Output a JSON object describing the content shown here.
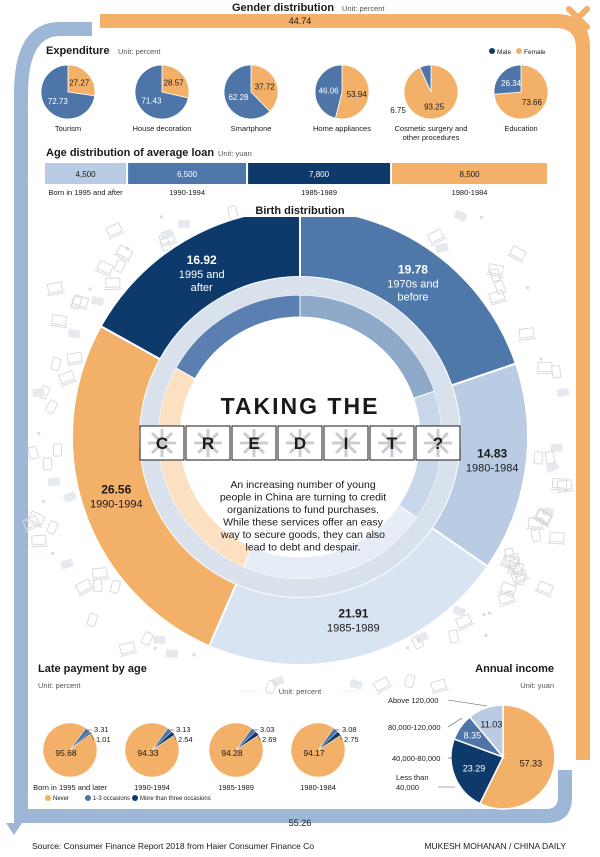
{
  "colors": {
    "male": "#4d75a8",
    "female": "#f2b069",
    "navy": "#0e3a6b",
    "mid": "#4f78aa",
    "light": "#b9cce3",
    "pale": "#d8e4f1",
    "peach": "#f7cd9f",
    "track": "#b9c9df",
    "never": "#f2b069",
    "occ13": "#4d75a8",
    "occ3p": "#0e3a6b"
  },
  "gender": {
    "title": "Gender distribution",
    "unit": "Unit: percent",
    "male_value": "55.26",
    "female_value": "44.74"
  },
  "expenditure": {
    "title": "Expenditure",
    "unit": "Unit: percent",
    "legend_male": "Male",
    "legend_female": "Female"
  },
  "loan": {
    "title": "Age distribution of average loan",
    "unit": "Unit: yuan"
  },
  "birth": {
    "title": "Birth distribution",
    "unit": "Unit: percent"
  },
  "headline": {
    "line1": "TAKING THE",
    "letters": [
      "C",
      "R",
      "E",
      "D",
      "I",
      "T",
      "?"
    ],
    "blurb": [
      "An increasing number of young",
      "people in China are turning to credit",
      "organizations to fund purchases.",
      "While these services offer an easy",
      "way to secure goods, they can also",
      "lead to debt and despair."
    ]
  },
  "late": {
    "title": "Late payment by age",
    "unit": "Unit: percent",
    "legend": [
      "Never",
      "1-3 occasions",
      "More than three occasions"
    ]
  },
  "income": {
    "title": "Annual income",
    "unit": "Unit: yuan"
  },
  "footer": {
    "source": "Source: Consumer Finance Report 2018 from Haier Consumer Finance Co",
    "credit": "MUKESH MOHANAN / CHINA DAILY"
  },
  "chart_data": [
    {
      "id": "gender",
      "type": "bar",
      "title": "Gender distribution",
      "unit": "percent",
      "categories": [
        "Male",
        "Female"
      ],
      "values": [
        55.26,
        44.74
      ]
    },
    {
      "id": "expenditure",
      "type": "pie",
      "title": "Expenditure",
      "unit": "percent",
      "categories": [
        "Tourism",
        "House decoration",
        "Smartphone",
        "Home appliances",
        "Cosmetic surgery and other procedures",
        "Education"
      ],
      "series": [
        {
          "name": "Male",
          "values": [
            72.73,
            71.43,
            62.28,
            46.06,
            6.75,
            26.34
          ],
          "labels": [
            "72.73",
            "71.43",
            "62.28",
            "46.06",
            "6.75",
            "26.34"
          ]
        },
        {
          "name": "Female",
          "values": [
            27.27,
            28.57,
            37.72,
            53.94,
            93.25,
            73.66
          ],
          "labels": [
            "27.27",
            "28.57",
            "37.72",
            "53.94",
            "93.25",
            "73.66"
          ]
        }
      ]
    },
    {
      "id": "loan",
      "type": "bar",
      "title": "Age distribution of average loan",
      "unit": "yuan",
      "categories": [
        "Born in 1995 and after",
        "1990-1994",
        "1985-1989",
        "1980-1984"
      ],
      "values": [
        4500,
        6500,
        7800,
        8500
      ],
      "labels": [
        "4,500",
        "6,500",
        "7,800",
        "8,500"
      ]
    },
    {
      "id": "birth",
      "type": "pie",
      "title": "Birth distribution",
      "unit": "percent",
      "categories": [
        "1970s and before",
        "1980-1984",
        "1985-1989",
        "1990-1994",
        "1995 and after"
      ],
      "values": [
        19.78,
        14.83,
        21.91,
        26.56,
        16.92
      ],
      "labels": [
        "19.78",
        "14.83",
        "21.91",
        "26.56",
        "16.92"
      ]
    },
    {
      "id": "late",
      "type": "pie",
      "title": "Late payment by age",
      "unit": "percent",
      "legend": [
        "Never",
        "1-3 occasions",
        "More than three occasions"
      ],
      "groups": [
        {
          "name": "Born in 1995 and later",
          "values": [
            95.68,
            3.31,
            1.01
          ],
          "labels": [
            "95.68",
            "3.31",
            "1.01"
          ]
        },
        {
          "name": "1990-1994",
          "values": [
            94.33,
            3.13,
            2.54
          ],
          "labels": [
            "94.33",
            "3.13",
            "2.54"
          ]
        },
        {
          "name": "1985-1989",
          "values": [
            94.28,
            3.03,
            2.69
          ],
          "labels": [
            "94.28",
            "3.03",
            "2.69"
          ]
        },
        {
          "name": "1980-1984",
          "values": [
            94.17,
            3.08,
            2.75
          ],
          "labels": [
            "94.17",
            "3.08",
            "2.75"
          ]
        }
      ]
    },
    {
      "id": "income",
      "type": "pie",
      "title": "Annual income",
      "unit": "yuan",
      "categories": [
        "Less than 40,000",
        "40,000-80,000",
        "80,000-120,000",
        "Above 120,000"
      ],
      "values": [
        57.33,
        23.29,
        8.35,
        11.03
      ],
      "labels": [
        "57.33",
        "23.29",
        "8.35",
        "11.03"
      ]
    }
  ]
}
